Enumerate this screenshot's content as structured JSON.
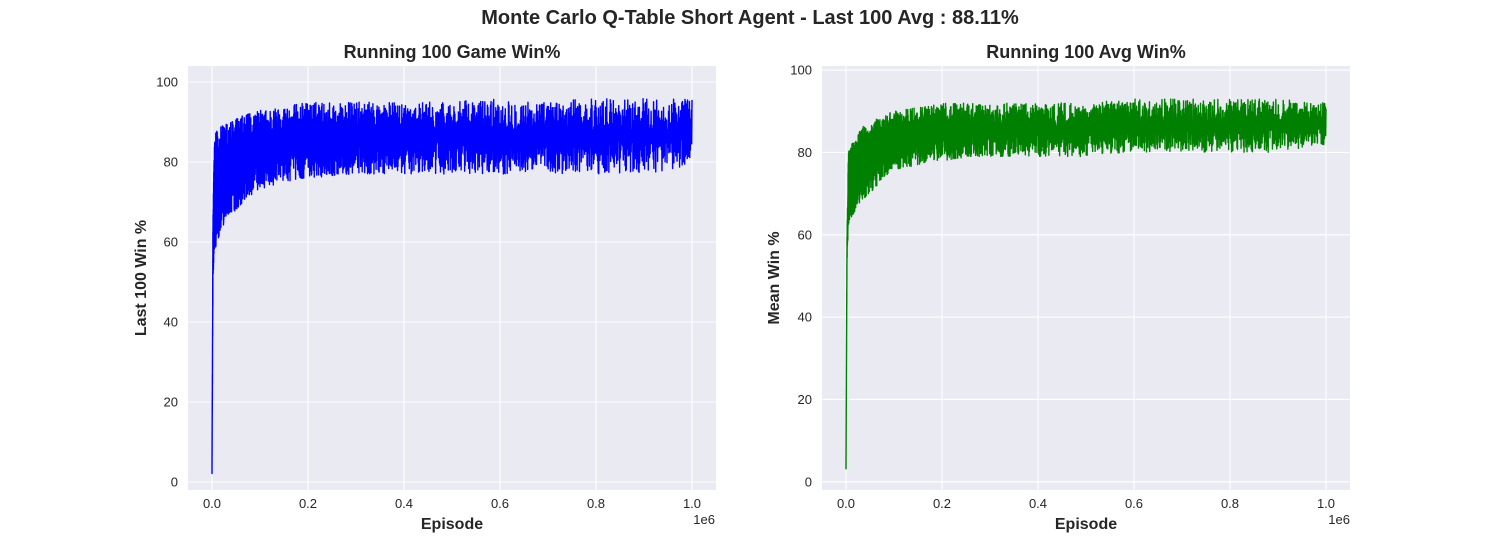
{
  "figure": {
    "suptitle": "Monte Carlo Q-Table Short Agent -  Last 100 Avg : 88.11%"
  },
  "chart_data": [
    {
      "type": "line",
      "title": "Running 100 Game Win%",
      "xlabel": "Episode",
      "ylabel": "Last 100 Win %",
      "x_offset_label": "1e6",
      "xlim": [
        -50000,
        1050000
      ],
      "ylim": [
        -2,
        104
      ],
      "xticks": [
        0,
        200000,
        400000,
        600000,
        800000,
        1000000
      ],
      "xtick_labels": [
        "0.0",
        "0.2",
        "0.4",
        "0.6",
        "0.8",
        "1.0"
      ],
      "yticks": [
        0,
        20,
        40,
        60,
        80,
        100
      ],
      "ytick_labels": [
        "0",
        "20",
        "40",
        "60",
        "80",
        "100"
      ],
      "grid": true,
      "background": "#eaeaf2",
      "series": [
        {
          "color": "#0000ff",
          "x": [
            0,
            2000,
            5000,
            10000,
            20000,
            30000,
            50000,
            75000,
            100000,
            150000,
            200000,
            300000,
            400000,
            500000,
            600000,
            700000,
            800000,
            900000,
            1000000
          ],
          "upper": [
            5,
            70,
            86,
            88,
            89,
            90,
            91,
            92,
            93,
            94,
            95,
            95,
            95,
            95,
            96,
            95,
            96,
            96,
            96
          ],
          "lower": [
            2,
            49,
            57,
            60,
            63,
            66,
            68,
            71,
            73,
            75,
            76,
            77,
            77,
            77,
            77,
            77,
            77,
            77,
            79
          ]
        }
      ]
    },
    {
      "type": "line",
      "title": "Running 100 Avg Win%",
      "xlabel": "Episode",
      "ylabel": "Mean Win %",
      "x_offset_label": "1e6",
      "xlim": [
        -50000,
        1050000
      ],
      "ylim": [
        -2,
        101
      ],
      "xticks": [
        0,
        200000,
        400000,
        600000,
        800000,
        1000000
      ],
      "xtick_labels": [
        "0.0",
        "0.2",
        "0.4",
        "0.6",
        "0.8",
        "1.0"
      ],
      "yticks": [
        0,
        20,
        40,
        60,
        80,
        100
      ],
      "ytick_labels": [
        "0",
        "20",
        "40",
        "60",
        "80",
        "100"
      ],
      "grid": true,
      "background": "#eaeaf2",
      "series": [
        {
          "color": "#008000",
          "x": [
            0,
            2000,
            5000,
            10000,
            20000,
            30000,
            50000,
            75000,
            100000,
            150000,
            200000,
            300000,
            400000,
            500000,
            600000,
            700000,
            800000,
            900000,
            1000000
          ],
          "upper": [
            3,
            60,
            80,
            82,
            84,
            86,
            87,
            89,
            90,
            91,
            92,
            92,
            92,
            92,
            93,
            93,
            93,
            93,
            92
          ],
          "lower": [
            3,
            52,
            62,
            64,
            66,
            68,
            70,
            73,
            75,
            77,
            78,
            79,
            79,
            79,
            80,
            80,
            80,
            80,
            82
          ]
        }
      ]
    }
  ]
}
